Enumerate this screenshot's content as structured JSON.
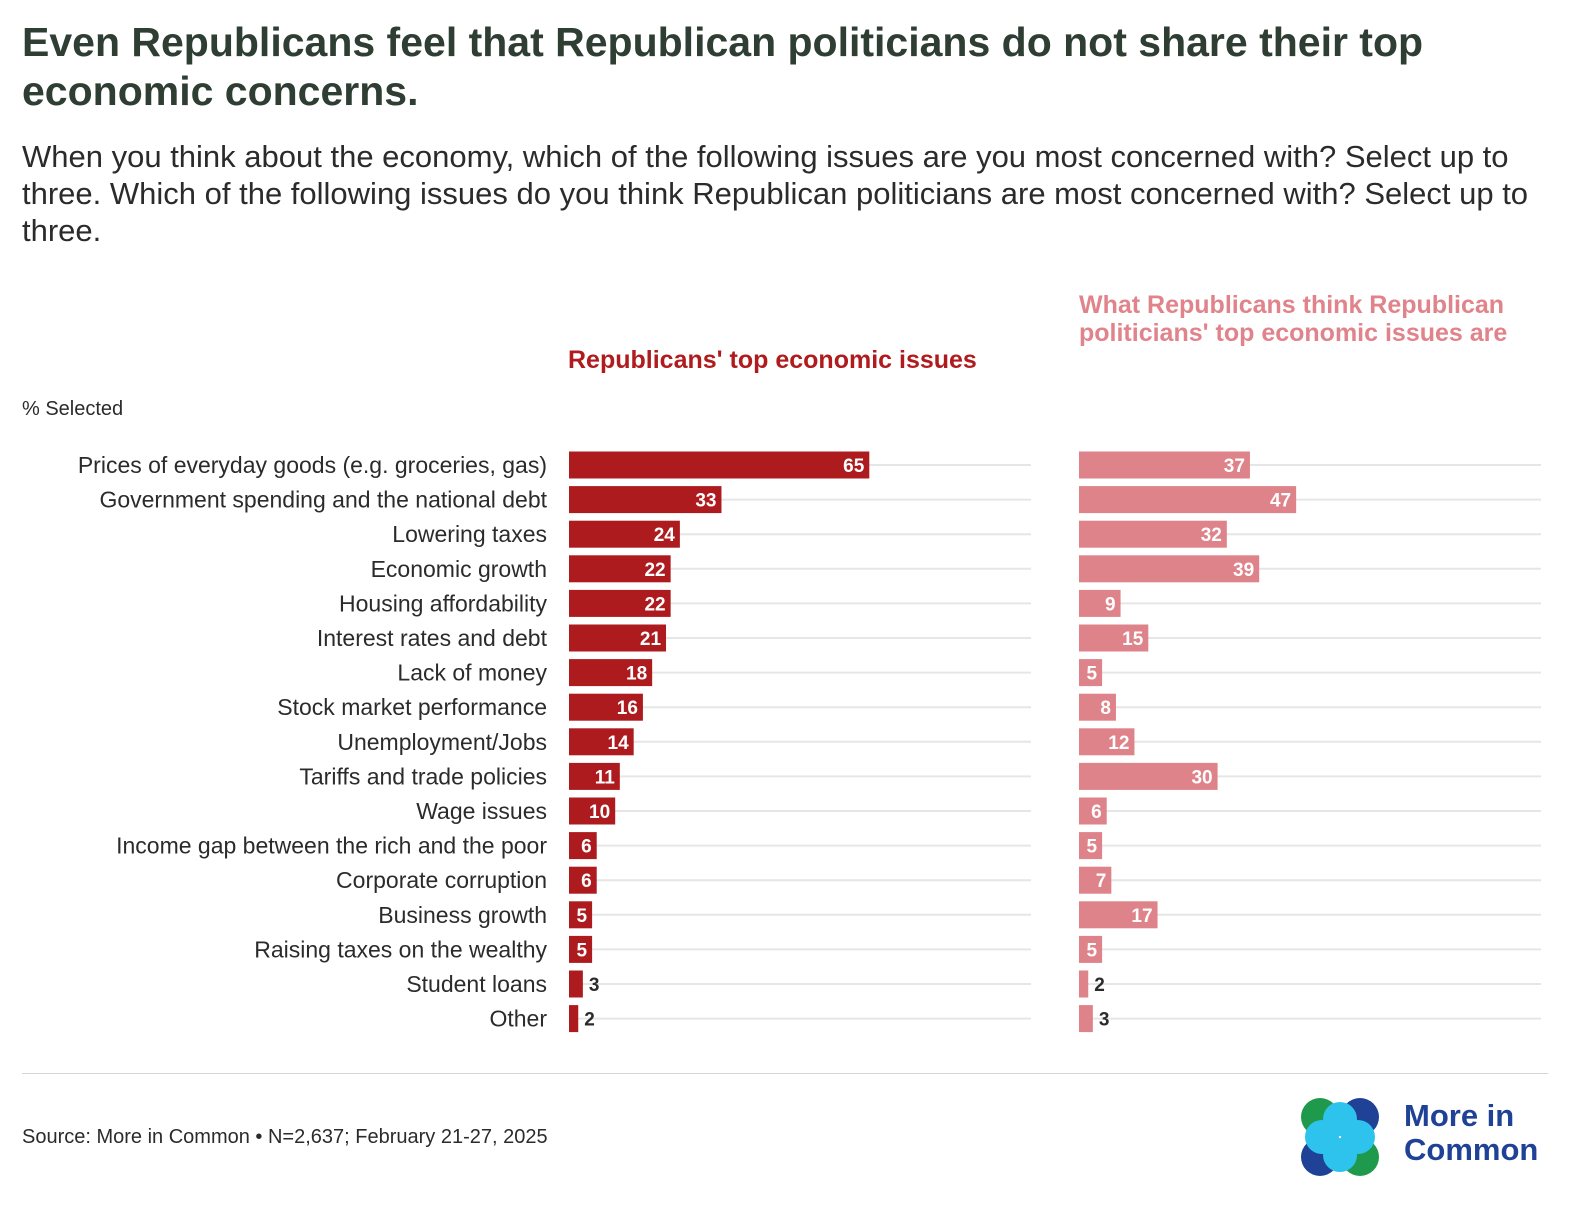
{
  "header": {
    "title": "Even Republicans feel that Republican politicians do not share their top economic concerns.",
    "subtitle": "When you think about the economy, which of the following issues are you most concerned with? Select up to three. Which of the following issues do you think Republican politicians are most concerned with? Select up to three."
  },
  "chart_data": {
    "type": "bar",
    "orientation": "horizontal",
    "unit_label": "% Selected",
    "categories": [
      "Prices of everyday goods (e.g. groceries, gas)",
      "Government spending and the national debt",
      "Lowering taxes",
      "Economic growth",
      "Housing affordability",
      "Interest rates and debt",
      "Lack of money",
      "Stock market performance",
      "Unemployment/Jobs",
      "Tariffs and trade policies",
      "Wage issues",
      "Income gap between the rich and the poor",
      "Corporate corruption",
      "Business growth",
      "Raising taxes on the wealthy",
      "Student loans",
      "Other"
    ],
    "series": [
      {
        "name": "Republicans' top economic issues",
        "color": "#ad1b1f",
        "values": [
          65,
          33,
          24,
          22,
          22,
          21,
          18,
          16,
          14,
          11,
          10,
          6,
          6,
          5,
          5,
          3,
          2
        ]
      },
      {
        "name": "What Republicans think Republican politicians' top economic issues are",
        "color": "#de8389",
        "values": [
          37,
          47,
          32,
          39,
          9,
          15,
          5,
          8,
          12,
          30,
          6,
          5,
          7,
          17,
          5,
          2,
          3
        ]
      }
    ],
    "xlim": [
      0,
      100
    ],
    "grid": true
  },
  "colors": {
    "title": "#2f3e33",
    "series_left": "#ad1b1f",
    "series_right": "#de8389",
    "grid": "#e6e6e6"
  },
  "footer": {
    "source": "Source: More in Common • N=2,637; February 21-27, 2025",
    "logo_line1": "More in",
    "logo_line2": "Common"
  }
}
